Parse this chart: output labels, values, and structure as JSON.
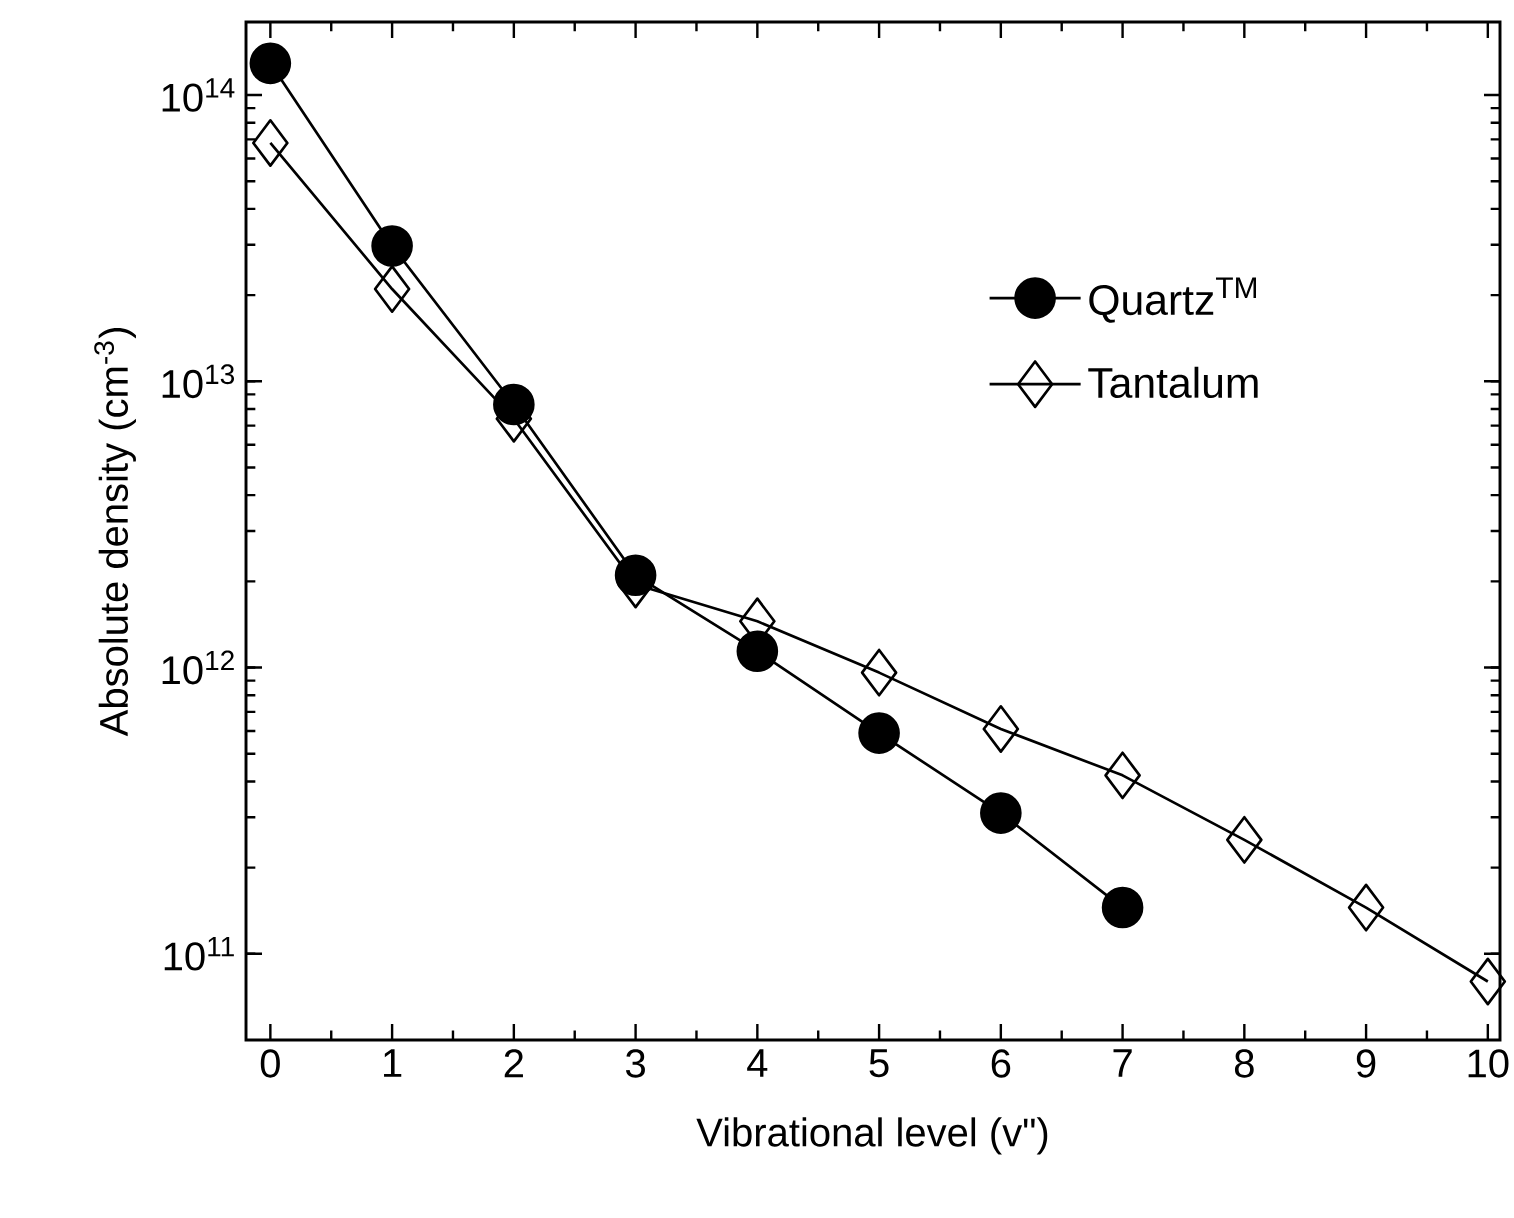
{
  "chart_data": {
    "type": "line",
    "xlabel": "Vibrational level (v\")",
    "ylabel": "Absolute density (cm$^{-3}$)",
    "log": "y",
    "legend": "top right",
    "grid": false,
    "xlim": [
      -0.2,
      10.1
    ],
    "xticks": [
      0,
      1,
      2,
      3,
      4,
      5,
      6,
      7,
      8,
      9,
      10
    ],
    "ylim": [
      50000000000.0,
      180000000000000.0
    ],
    "yticks": [
      {
        "value": 100000000000.0,
        "label": "10$^{11}$"
      },
      {
        "value": 1000000000000.0,
        "label": "10$^{12}$"
      },
      {
        "value": 10000000000000.0,
        "label": "10$^{13}$"
      },
      {
        "value": 100000000000000.0,
        "label": "10$^{14}$"
      }
    ],
    "series": [
      {
        "name": "Quartz$^{TM}$",
        "color": "#000000",
        "marker": "circle",
        "x": [
          0,
          1,
          2,
          3,
          4,
          5,
          6,
          7
        ],
        "values": [
          129000000000000.0,
          29700000000000.0,
          8300000000000.0,
          2100000000000.0,
          1140000000000.0,
          590000000000.0,
          310000000000.0,
          145000000000.0
        ]
      },
      {
        "name": "Tantalum",
        "color": "#000000",
        "marker": "diamond",
        "x": [
          0,
          1,
          2,
          3,
          4,
          5,
          6,
          7,
          8,
          9,
          10
        ],
        "values": [
          68000000000000.0,
          21000000000000.0,
          7400000000000.0,
          1950000000000.0,
          1450000000000.0,
          960000000000.0,
          610000000000.0,
          420000000000.0,
          250000000000.0,
          145000000000.0,
          80000000000.0
        ]
      }
    ]
  }
}
